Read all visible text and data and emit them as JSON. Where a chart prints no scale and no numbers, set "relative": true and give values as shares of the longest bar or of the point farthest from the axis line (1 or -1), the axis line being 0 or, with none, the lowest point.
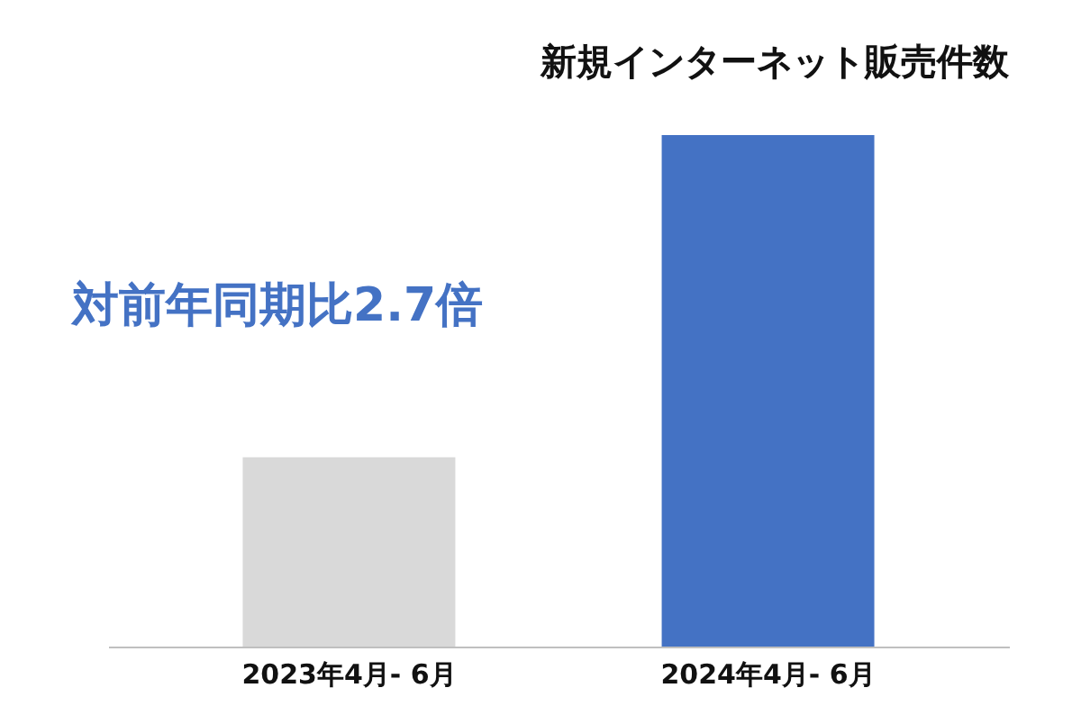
{
  "chart_data": {
    "type": "bar",
    "title": "新規インターネット販売件数",
    "categories": [
      "2023年4月- 6月",
      "2024年4月- 6月"
    ],
    "values": [
      0.37,
      1
    ],
    "colors": [
      "#d9d9d9",
      "#4472c4"
    ],
    "relative": true,
    "grid": false,
    "annotations": [
      "対前年同期比2.7倍"
    ]
  }
}
